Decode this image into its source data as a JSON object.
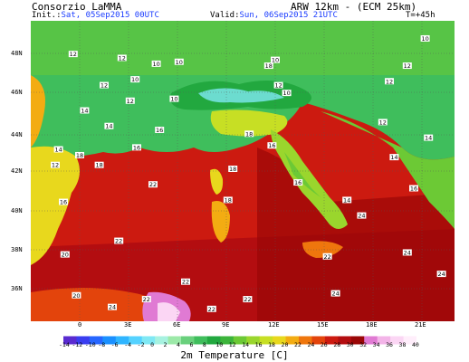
{
  "header": {
    "org": "Consorzio LaMMA",
    "model": "ARW 12km - (ECM 25km)",
    "init_label": "Init.:",
    "init_date": "Sat, 05Sep2015 00UTC",
    "valid_label": "Valid:",
    "valid_date": "Sun, 06Sep2015 21UTC",
    "lead": "T=+45h"
  },
  "map": {
    "lat_labels": [
      "48N",
      "46N",
      "44N",
      "42N",
      "40N",
      "38N",
      "36N"
    ],
    "lon_labels": [
      "0",
      "3E",
      "6E",
      "9E",
      "12E",
      "15E",
      "18E",
      "21E"
    ],
    "temperature_labels": [
      {
        "t": "12",
        "lon": -0.4,
        "lat": 47.9
      },
      {
        "t": "12",
        "lon": 1.5,
        "lat": 46.3
      },
      {
        "t": "10",
        "lon": 3.4,
        "lat": 46.6
      },
      {
        "t": "14",
        "lon": 0.3,
        "lat": 45.0
      },
      {
        "t": "14",
        "lon": 1.8,
        "lat": 44.2
      },
      {
        "t": "12",
        "lon": 2.6,
        "lat": 47.7
      },
      {
        "t": "10",
        "lon": 4.7,
        "lat": 47.4
      },
      {
        "t": "10",
        "lon": 6.1,
        "lat": 47.5
      },
      {
        "t": "10",
        "lon": 5.8,
        "lat": 45.6
      },
      {
        "t": "12",
        "lon": 3.1,
        "lat": 45.5
      },
      {
        "t": "16",
        "lon": 4.9,
        "lat": 44.0
      },
      {
        "t": "16",
        "lon": 3.5,
        "lat": 43.1
      },
      {
        "t": "18",
        "lon": 1.2,
        "lat": 42.2
      },
      {
        "t": "18",
        "lon": 0.0,
        "lat": 42.7
      },
      {
        "t": "14",
        "lon": -1.3,
        "lat": 43.0
      },
      {
        "t": "12",
        "lon": -1.5,
        "lat": 42.2
      },
      {
        "t": "16",
        "lon": -1.0,
        "lat": 40.3
      },
      {
        "t": "20",
        "lon": -0.9,
        "lat": 37.6
      },
      {
        "t": "20",
        "lon": -0.2,
        "lat": 35.5
      },
      {
        "t": "22",
        "lon": 2.4,
        "lat": 38.3
      },
      {
        "t": "22",
        "lon": 4.5,
        "lat": 41.2
      },
      {
        "t": "22",
        "lon": 6.5,
        "lat": 36.2
      },
      {
        "t": "22",
        "lon": 8.1,
        "lat": 34.8
      },
      {
        "t": "18",
        "lon": 11.6,
        "lat": 47.3
      },
      {
        "t": "10",
        "lon": 12.0,
        "lat": 47.6
      },
      {
        "t": "10",
        "lon": 12.7,
        "lat": 45.9
      },
      {
        "t": "12",
        "lon": 12.2,
        "lat": 46.3
      },
      {
        "t": "18",
        "lon": 10.4,
        "lat": 43.8
      },
      {
        "t": "16",
        "lon": 11.8,
        "lat": 43.2
      },
      {
        "t": "16",
        "lon": 13.4,
        "lat": 41.3
      },
      {
        "t": "18",
        "lon": 9.1,
        "lat": 40.4
      },
      {
        "t": "18",
        "lon": 9.4,
        "lat": 42.0
      },
      {
        "t": "22",
        "lon": 15.2,
        "lat": 37.5
      },
      {
        "t": "24",
        "lon": 17.3,
        "lat": 39.6
      },
      {
        "t": "24",
        "lon": 20.1,
        "lat": 37.7
      },
      {
        "t": "24",
        "lon": 15.7,
        "lat": 35.6
      },
      {
        "t": "14",
        "lon": 16.4,
        "lat": 40.4
      },
      {
        "t": "12",
        "lon": 19.0,
        "lat": 46.5
      },
      {
        "t": "12",
        "lon": 20.1,
        "lat": 47.3
      },
      {
        "t": "10",
        "lon": 21.2,
        "lat": 48.7
      },
      {
        "t": "12",
        "lon": 18.6,
        "lat": 44.4
      },
      {
        "t": "14",
        "lon": 19.3,
        "lat": 42.6
      },
      {
        "t": "16",
        "lon": 20.5,
        "lat": 41.0
      },
      {
        "t": "24",
        "lon": 22.2,
        "lat": 36.6
      },
      {
        "t": "14",
        "lon": 21.4,
        "lat": 43.6
      },
      {
        "t": "24",
        "lon": 2.0,
        "lat": 34.9
      },
      {
        "t": "22",
        "lon": 10.3,
        "lat": 35.3
      },
      {
        "t": "22",
        "lon": 4.1,
        "lat": 35.3
      }
    ]
  },
  "colorbar": {
    "title": "2m Temperature [C]",
    "labels": [
      "-14",
      "-12",
      "-10",
      "-8",
      "-6",
      "-4",
      "-2",
      "0",
      "2",
      "4",
      "6",
      "8",
      "10",
      "12",
      "14",
      "16",
      "18",
      "20",
      "22",
      "24",
      "26",
      "28",
      "30",
      "32",
      "34",
      "36",
      "38",
      "40"
    ],
    "colors": [
      "#5a2bd0",
      "#3a3df0",
      "#2666ff",
      "#1a90ff",
      "#2fb5ff",
      "#55d2ff",
      "#7fe8f4",
      "#a7f2e0",
      "#9ce9a8",
      "#69d07c",
      "#3fbe5c",
      "#22a83f",
      "#3cb43b",
      "#6cc935",
      "#9ad62d",
      "#c7df24",
      "#e8d81d",
      "#f3ac12",
      "#ef760d",
      "#e3440c",
      "#cc1a10",
      "#b30d10",
      "#9a0707",
      "#e07ad3",
      "#f3b4e8",
      "#fbd6f4",
      "#ffeefb"
    ]
  }
}
